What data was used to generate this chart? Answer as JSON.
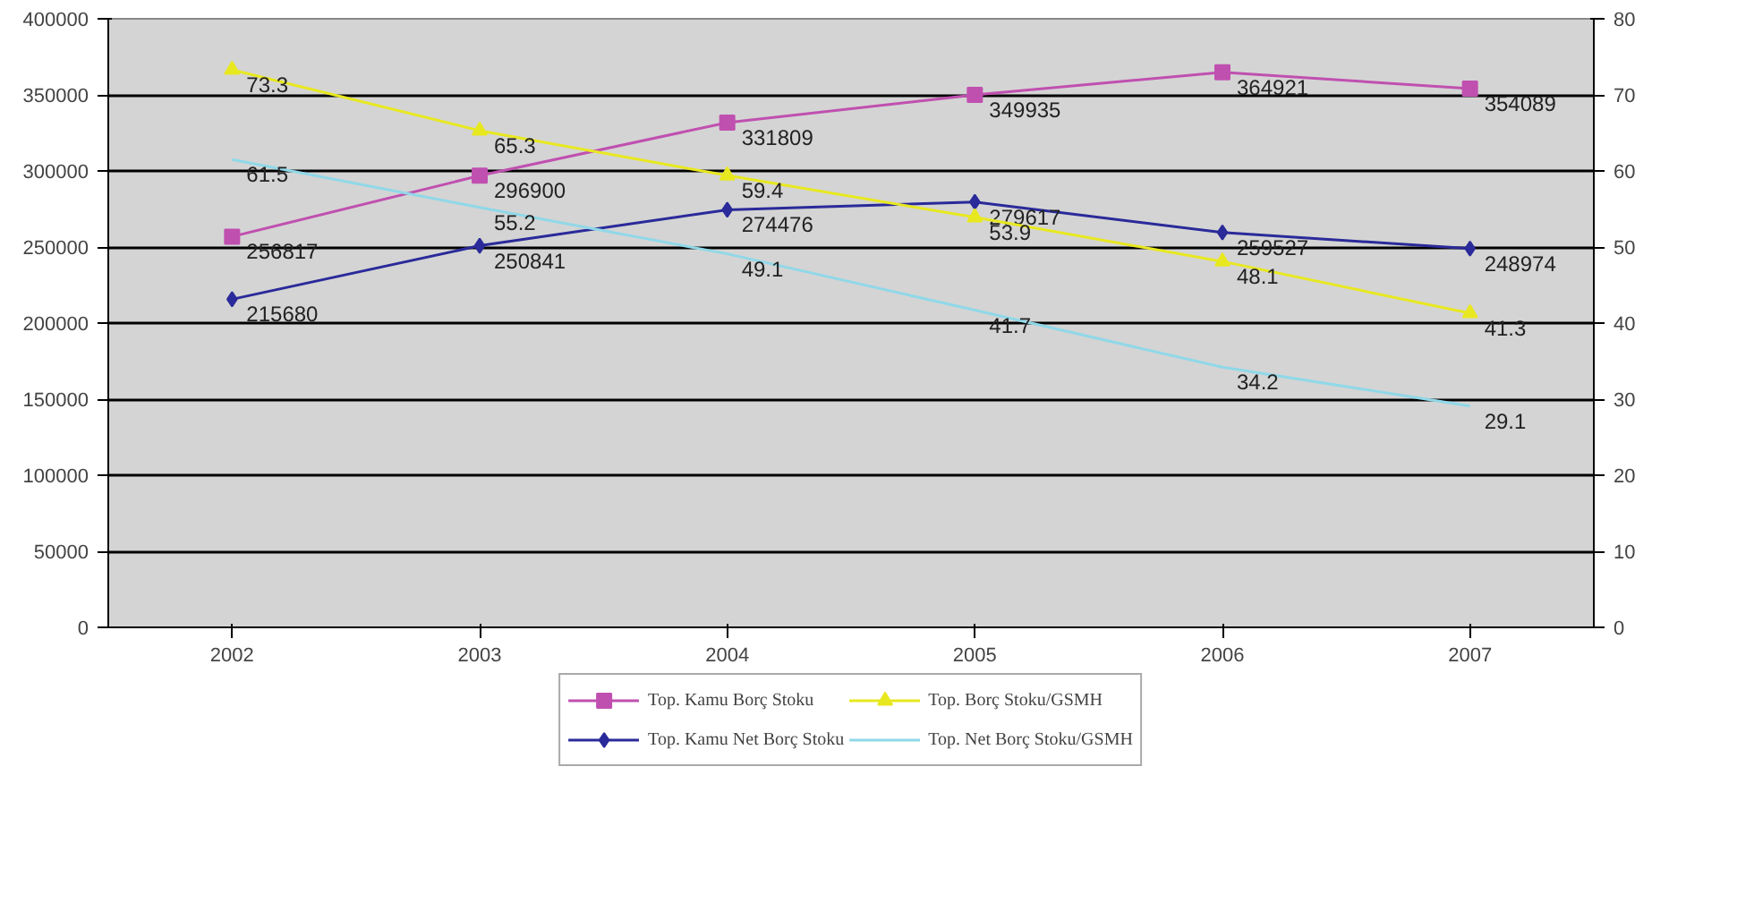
{
  "chart_data": {
    "type": "line",
    "categories": [
      "2002",
      "2003",
      "2004",
      "2005",
      "2006",
      "2007"
    ],
    "series": [
      {
        "name": "Top. Kamu Borç Stoku",
        "color": "#c050b0",
        "values": [
          256817,
          296900,
          331809,
          349935,
          364921,
          354089
        ],
        "marker": "square"
      },
      {
        "name": "Top. Kamu Net Borç Stoku",
        "color": "#2a2a9a",
        "values": [
          215680,
          250841,
          274476,
          279617,
          259527,
          248974
        ],
        "marker": "diamond"
      },
      {
        "name": "Top. Borç Stoku/GSMH",
        "color": "#e8e820",
        "values": [
          73.3,
          65.3,
          59.4,
          53.9,
          48.1,
          41.3
        ],
        "axis": "y2",
        "marker": "triangle"
      },
      {
        "name": "Top. Net Borç Stoku/GSMH",
        "color": "#90d8e8",
        "values": [
          61.5,
          55.2,
          49.1,
          41.7,
          34.2,
          29.1
        ],
        "axis": "y2",
        "marker": "none"
      }
    ],
    "ylim": [
      0,
      400000
    ],
    "yticks": [
      0,
      50000,
      100000,
      150000,
      200000,
      250000,
      300000,
      350000,
      400000
    ],
    "y2lim": [
      0,
      80
    ],
    "y2ticks": [
      0,
      10,
      20,
      30,
      40,
      50,
      60,
      70,
      80
    ],
    "grid": "y",
    "legend": "bottom",
    "data_labels": true,
    "line_style": "solid"
  }
}
